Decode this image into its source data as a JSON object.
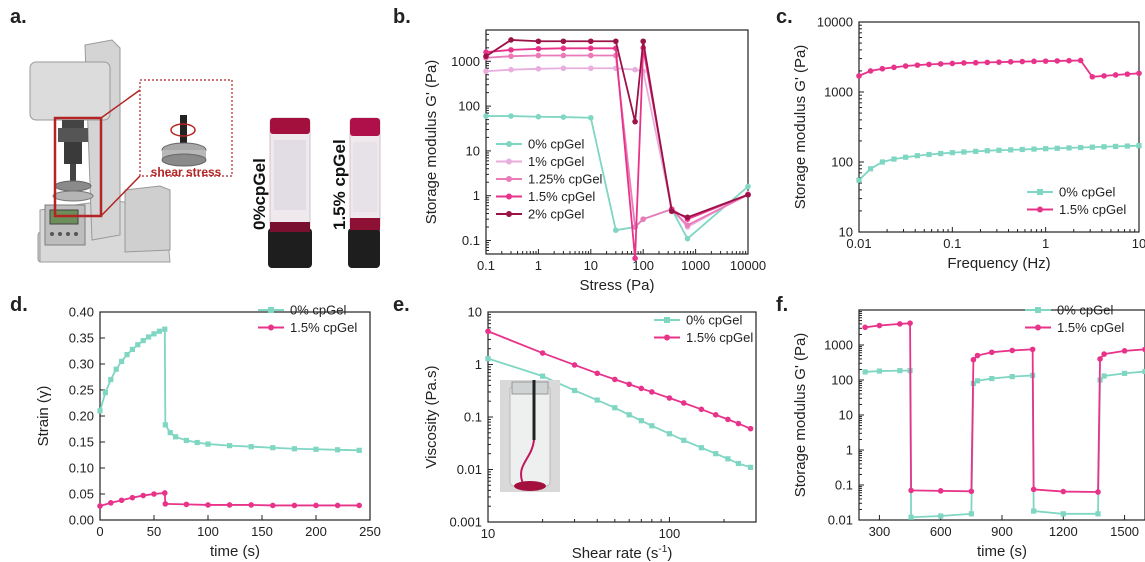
{
  "panel_labels": {
    "a": "a.",
    "b": "b.",
    "c": "c.",
    "d": "d.",
    "e": "e.",
    "f": "f."
  },
  "illustration": {
    "callout_text": "shear stress",
    "vial_left_label": "0%cpGel",
    "vial_right_label": "1.5% cpGel"
  },
  "colors": {
    "teal": "#7fd6c2",
    "pink": "#e8338a",
    "lightpink": "#e7aede",
    "medpink": "#ea7ab8",
    "darkpink": "#9b1346",
    "callout_red": "#b32424"
  },
  "chart_data": [
    {
      "id": "b",
      "type": "line",
      "xlabel": "Stress (Pa)",
      "ylabel": "Storage modulus G' (Pa)",
      "xscale": "log",
      "yscale": "log",
      "xlim": [
        0.1,
        10000
      ],
      "ylim": [
        0.05,
        5000
      ],
      "xticks": [
        0.1,
        1,
        10,
        100,
        1000,
        10000
      ],
      "xtick_labels": [
        "0.1",
        "1",
        "10",
        "100",
        "1000",
        "10000"
      ],
      "yticks": [
        0.1,
        1,
        10,
        100,
        1000
      ],
      "ytick_labels": [
        "0.1",
        "1",
        "10",
        "100",
        "1000"
      ],
      "legend": "bottom-left",
      "series": [
        {
          "name": "0% cpGel",
          "color": "#7fd6c2",
          "x": [
            0.1,
            0.3,
            1,
            3,
            10,
            30,
            70,
            100,
            350,
            700,
            10000
          ],
          "y": [
            60,
            60,
            58,
            57,
            55,
            0.17,
            0.2,
            0.3,
            0.5,
            0.11,
            1.6
          ]
        },
        {
          "name": "1% cpGel",
          "color": "#e7aede",
          "x": [
            0.1,
            0.3,
            1,
            3,
            10,
            30,
            70,
            100,
            350,
            700,
            10000
          ],
          "y": [
            600,
            650,
            680,
            700,
            700,
            700,
            650,
            600,
            0.5,
            0.2,
            1.1
          ]
        },
        {
          "name": "1.25% cpGel",
          "color": "#ea7ab8",
          "x": [
            0.1,
            0.3,
            1,
            3,
            10,
            30,
            70,
            100,
            350,
            700,
            10000
          ],
          "y": [
            1200,
            1300,
            1350,
            1350,
            1350,
            1350,
            0.2,
            0.3,
            0.5,
            0.22,
            1.05
          ]
        },
        {
          "name": "1.5% cpGel",
          "color": "#e8338a",
          "x": [
            0.1,
            0.3,
            1,
            3,
            10,
            30,
            70,
            100,
            350,
            700,
            10000
          ],
          "y": [
            1600,
            1800,
            1900,
            1950,
            1950,
            1950,
            0.04,
            2000,
            0.5,
            0.3,
            1.05
          ]
        },
        {
          "name": "2% cpGel",
          "color": "#9b1346",
          "x": [
            0.1,
            0.3,
            1,
            3,
            10,
            30,
            70,
            100,
            350,
            700,
            10000
          ],
          "y": [
            1300,
            3000,
            2800,
            2800,
            2800,
            2800,
            45,
            2800,
            0.45,
            0.33,
            1.05
          ]
        }
      ]
    },
    {
      "id": "c",
      "type": "line",
      "xlabel": "Frequency (Hz)",
      "ylabel": "Storage modulus G' (Pa)",
      "xscale": "log",
      "yscale": "log",
      "xlim": [
        0.01,
        10
      ],
      "ylim": [
        10,
        10000
      ],
      "xticks": [
        0.01,
        0.1,
        1,
        10
      ],
      "xtick_labels": [
        "0.01",
        "0.1",
        "1",
        "10"
      ],
      "yticks": [
        10,
        100,
        1000,
        10000
      ],
      "ytick_labels": [
        "10",
        "100",
        "1000",
        "10000"
      ],
      "legend": "bottom-right",
      "series": [
        {
          "name": "0% cpGel",
          "color": "#7fd6c2",
          "x": [
            0.01,
            0.0133,
            0.0178,
            0.0237,
            0.0316,
            0.0422,
            0.0562,
            0.075,
            0.1,
            0.133,
            0.178,
            0.237,
            0.316,
            0.422,
            0.562,
            0.75,
            1,
            1.33,
            1.78,
            2.37,
            3.16,
            4.22,
            5.62,
            7.5,
            10
          ],
          "y": [
            55,
            80,
            100,
            110,
            117,
            123,
            128,
            132,
            136,
            139,
            142,
            145,
            147,
            149,
            151,
            153,
            155,
            157,
            159,
            161,
            163,
            165,
            167,
            169,
            171
          ]
        },
        {
          "name": "1.5% cpGel",
          "color": "#e8338a",
          "x": [
            0.01,
            0.0133,
            0.0178,
            0.0237,
            0.0316,
            0.0422,
            0.0562,
            0.075,
            0.1,
            0.133,
            0.178,
            0.237,
            0.316,
            0.422,
            0.562,
            0.75,
            1,
            1.33,
            1.78,
            2.37,
            3.16,
            4.22,
            5.62,
            7.5,
            10
          ],
          "y": [
            1700,
            2000,
            2150,
            2250,
            2350,
            2420,
            2480,
            2520,
            2560,
            2600,
            2620,
            2650,
            2670,
            2700,
            2720,
            2740,
            2760,
            2780,
            2800,
            2820,
            1650,
            1700,
            1750,
            1800,
            1850
          ]
        }
      ]
    },
    {
      "id": "d",
      "type": "line",
      "xlabel": "time (s)",
      "ylabel": "Strain (γ)",
      "xscale": "linear",
      "yscale": "linear",
      "xlim": [
        0,
        250
      ],
      "ylim": [
        0,
        0.4
      ],
      "xticks": [
        0,
        50,
        100,
        150,
        200,
        250
      ],
      "xtick_labels": [
        "0",
        "50",
        "100",
        "150",
        "200",
        "250"
      ],
      "yticks": [
        0,
        0.05,
        0.1,
        0.15,
        0.2,
        0.25,
        0.3,
        0.35,
        0.4
      ],
      "ytick_labels": [
        "0.00",
        "0.05",
        "0.10",
        "0.15",
        "0.20",
        "0.25",
        "0.30",
        "0.35",
        "0.40"
      ],
      "legend": "top-right",
      "series": [
        {
          "name": "0% cpGel",
          "color": "#7fd6c2",
          "x": [
            0,
            5,
            10,
            15,
            20,
            25,
            30,
            35,
            40,
            45,
            50,
            55,
            60,
            60.5,
            65,
            70,
            80,
            90,
            100,
            120,
            140,
            160,
            180,
            200,
            220,
            240
          ],
          "y": [
            0.21,
            0.245,
            0.27,
            0.29,
            0.305,
            0.318,
            0.328,
            0.337,
            0.345,
            0.352,
            0.358,
            0.363,
            0.367,
            0.183,
            0.168,
            0.16,
            0.153,
            0.149,
            0.146,
            0.143,
            0.141,
            0.139,
            0.137,
            0.136,
            0.135,
            0.134
          ]
        },
        {
          "name": "1.5% cpGel",
          "color": "#e8338a",
          "x": [
            0,
            10,
            20,
            30,
            40,
            50,
            60,
            60.5,
            80,
            100,
            120,
            140,
            160,
            180,
            200,
            220,
            240
          ],
          "y": [
            0.027,
            0.033,
            0.038,
            0.043,
            0.047,
            0.05,
            0.052,
            0.031,
            0.03,
            0.029,
            0.029,
            0.029,
            0.028,
            0.028,
            0.028,
            0.028,
            0.028
          ]
        }
      ]
    },
    {
      "id": "e",
      "type": "line",
      "xlabel": "Shear rate (s",
      "xlabel_sup": "-1",
      "xlabel_end": ")",
      "ylabel": "Viscosity (Pa.s)",
      "xscale": "log",
      "yscale": "log",
      "xlim": [
        10,
        300
      ],
      "ylim": [
        0.001,
        10
      ],
      "xticks": [
        10,
        100
      ],
      "xtick_labels": [
        "10",
        "100"
      ],
      "yticks": [
        0.001,
        0.01,
        0.1,
        1,
        10
      ],
      "ytick_labels": [
        "0.001",
        "0.01",
        "0.1",
        "1",
        "10"
      ],
      "legend": "top-right",
      "series": [
        {
          "name": "0% cpGel",
          "color": "#7fd6c2",
          "x": [
            10,
            20,
            30,
            40,
            50,
            60,
            70,
            80,
            100,
            120,
            150,
            180,
            210,
            240,
            280
          ],
          "y": [
            1.3,
            0.6,
            0.32,
            0.21,
            0.15,
            0.11,
            0.085,
            0.068,
            0.048,
            0.036,
            0.026,
            0.02,
            0.016,
            0.013,
            0.011
          ]
        },
        {
          "name": "1.5% cpGel",
          "color": "#e8338a",
          "x": [
            10,
            20,
            30,
            40,
            50,
            60,
            70,
            80,
            100,
            120,
            150,
            180,
            210,
            240,
            280
          ],
          "y": [
            4.3,
            1.65,
            0.98,
            0.68,
            0.52,
            0.42,
            0.35,
            0.3,
            0.23,
            0.185,
            0.14,
            0.11,
            0.09,
            0.075,
            0.06
          ]
        }
      ]
    },
    {
      "id": "f",
      "type": "line",
      "xlabel": "time (s)",
      "ylabel": "Storage modulus G' (Pa)",
      "xscale": "linear",
      "yscale": "log",
      "xlim": [
        200,
        1600
      ],
      "ylim": [
        0.01,
        10000
      ],
      "xticks": [
        300,
        600,
        900,
        1200,
        1500
      ],
      "xtick_labels": [
        "300",
        "600",
        "900",
        "1200",
        "1500"
      ],
      "yticks": [
        0.01,
        0.1,
        1,
        10,
        100,
        1000
      ],
      "ytick_labels": [
        "0.01",
        "0.1",
        "1",
        "10",
        "100",
        "1000"
      ],
      "legend": "top-right",
      "series": [
        {
          "name": "0% cpGel",
          "color": "#7fd6c2",
          "x": [
            230,
            300,
            400,
            450,
            455,
            600,
            750,
            760,
            780,
            850,
            950,
            1050,
            1055,
            1200,
            1370,
            1380,
            1400,
            1500,
            1600
          ],
          "y": [
            170,
            180,
            185,
            185,
            0.012,
            0.013,
            0.015,
            80,
            95,
            110,
            125,
            135,
            0.018,
            0.015,
            0.015,
            100,
            130,
            155,
            175
          ]
        },
        {
          "name": "1.5% cpGel",
          "color": "#e8338a",
          "x": [
            230,
            300,
            400,
            450,
            455,
            600,
            750,
            760,
            780,
            850,
            950,
            1050,
            1055,
            1200,
            1370,
            1380,
            1400,
            1500,
            1600
          ],
          "y": [
            3200,
            3600,
            4000,
            4200,
            0.07,
            0.068,
            0.066,
            380,
            500,
            620,
            700,
            750,
            0.075,
            0.065,
            0.063,
            400,
            550,
            680,
            750
          ]
        }
      ]
    }
  ]
}
